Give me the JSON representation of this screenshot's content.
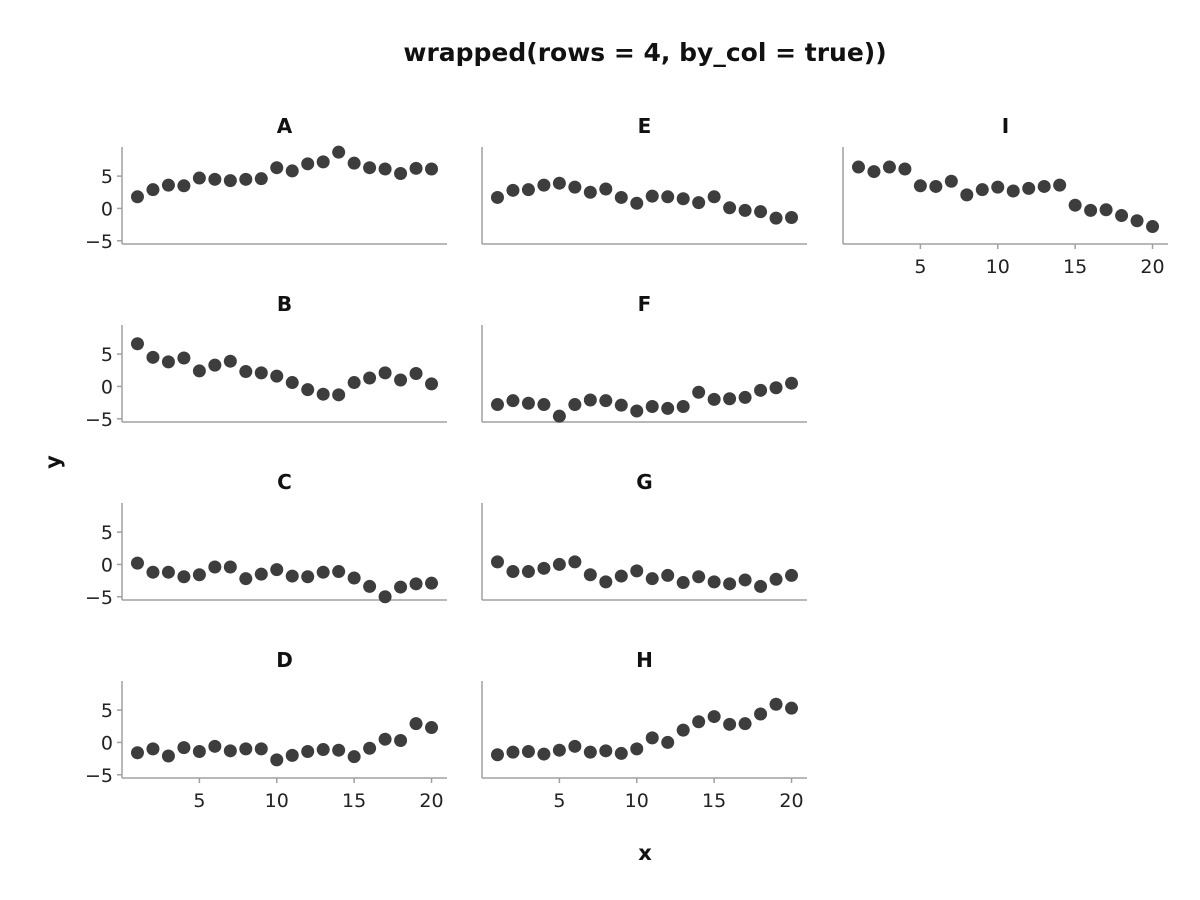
{
  "chart_data": {
    "type": "scatter",
    "title": "wrapped(rows = 4, by_col = true))",
    "xlabel": "x",
    "ylabel": "y",
    "xlim": [
      0,
      21
    ],
    "ylim": [
      -5.5,
      9.5
    ],
    "xticks": [
      5,
      10,
      15,
      20
    ],
    "yticks": [
      5,
      0,
      -5
    ],
    "grid": false,
    "x": [
      1,
      2,
      3,
      4,
      5,
      6,
      7,
      8,
      9,
      10,
      11,
      12,
      13,
      14,
      15,
      16,
      17,
      18,
      19,
      20
    ],
    "panels": [
      {
        "name": "A",
        "values": [
          1.8,
          2.9,
          3.6,
          3.5,
          4.7,
          4.5,
          4.3,
          4.5,
          4.6,
          6.3,
          5.8,
          6.9,
          7.2,
          8.7,
          7.0,
          6.3,
          6.1,
          5.4,
          6.2,
          6.1
        ]
      },
      {
        "name": "B",
        "values": [
          6.6,
          4.5,
          3.8,
          4.4,
          2.4,
          3.3,
          3.9,
          2.3,
          2.1,
          1.6,
          0.6,
          -0.5,
          -1.2,
          -1.3,
          0.6,
          1.3,
          2.1,
          1.0,
          2.0,
          0.4
        ]
      },
      {
        "name": "C",
        "values": [
          0.2,
          -1.2,
          -1.2,
          -1.9,
          -1.6,
          -0.4,
          -0.4,
          -2.2,
          -1.5,
          -0.8,
          -1.8,
          -1.9,
          -1.2,
          -1.1,
          -2.1,
          -3.4,
          -5.0,
          -3.5,
          -3.0,
          -2.9
        ]
      },
      {
        "name": "D",
        "values": [
          -1.6,
          -1.0,
          -2.1,
          -0.8,
          -1.4,
          -0.6,
          -1.3,
          -1.0,
          -1.0,
          -2.7,
          -2.0,
          -1.4,
          -1.1,
          -1.2,
          -2.2,
          -0.9,
          0.5,
          0.3,
          2.9,
          2.3
        ]
      },
      {
        "name": "E",
        "values": [
          1.7,
          2.8,
          2.9,
          3.6,
          3.9,
          3.3,
          2.5,
          3.0,
          1.7,
          0.8,
          1.9,
          1.8,
          1.5,
          0.9,
          1.8,
          0.1,
          -0.3,
          -0.5,
          -1.5,
          -1.4
        ]
      },
      {
        "name": "F",
        "values": [
          -2.8,
          -2.2,
          -2.6,
          -2.8,
          -4.6,
          -2.8,
          -2.1,
          -2.2,
          -2.9,
          -3.8,
          -3.1,
          -3.4,
          -3.1,
          -0.9,
          -2.0,
          -1.9,
          -1.7,
          -0.6,
          -0.2,
          0.5
        ]
      },
      {
        "name": "G",
        "values": [
          0.4,
          -1.1,
          -1.1,
          -0.6,
          0.0,
          0.4,
          -1.6,
          -2.7,
          -1.8,
          -1.0,
          -2.2,
          -1.7,
          -2.8,
          -1.9,
          -2.7,
          -3.0,
          -2.4,
          -3.4,
          -2.3,
          -1.7
        ]
      },
      {
        "name": "H",
        "values": [
          -1.9,
          -1.5,
          -1.4,
          -1.8,
          -1.2,
          -0.6,
          -1.5,
          -1.3,
          -1.7,
          -1.0,
          0.7,
          0.0,
          1.9,
          3.2,
          4.0,
          2.8,
          2.9,
          4.4,
          5.9,
          5.3
        ]
      },
      {
        "name": "I",
        "values": [
          6.4,
          5.7,
          6.4,
          6.1,
          3.5,
          3.4,
          4.2,
          2.1,
          2.9,
          3.3,
          2.7,
          3.1,
          3.4,
          3.6,
          0.5,
          -0.3,
          -0.2,
          -1.1,
          -1.9,
          -2.8
        ]
      }
    ]
  }
}
